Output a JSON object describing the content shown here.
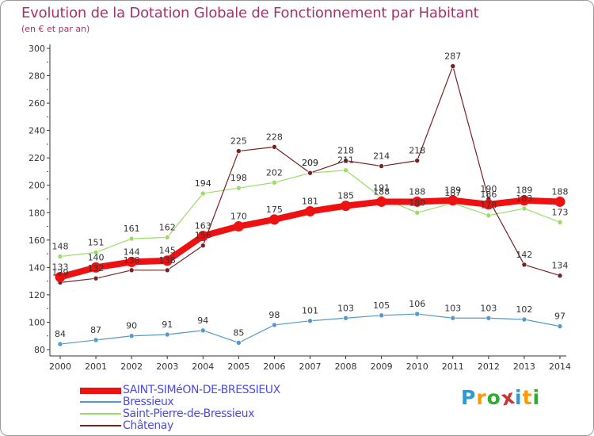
{
  "title": "Evolution de la Dotation Globale de Fonctionnement par Habitant",
  "subtitle": "(en € et par an)",
  "logo": {
    "text": "Proxiti",
    "letters": [
      "P",
      "r",
      "o",
      "x",
      "i",
      "t",
      "i"
    ],
    "colors": [
      "#3399cc",
      "#ff9900",
      "#33aa33",
      "#cc3333",
      "#3399cc",
      "#ff9900",
      "#33aa33"
    ]
  },
  "chart_data": {
    "type": "line",
    "title": "Evolution de la Dotation Globale de Fonctionnement par Habitant",
    "subtitle": "(en € et par an)",
    "xlabel": "",
    "ylabel": "",
    "x": [
      "2000",
      "2001",
      "2002",
      "2003",
      "2004",
      "2005",
      "2006",
      "2007",
      "2008",
      "2009",
      "2010",
      "2011",
      "2012",
      "2013",
      "2014"
    ],
    "ylim": [
      80,
      300
    ],
    "yticks": [
      "80",
      "100",
      "120",
      "140",
      "160",
      "180",
      "200",
      "220",
      "240",
      "260",
      "280",
      "300"
    ],
    "grid": false,
    "legend_position": "bottom-left",
    "series": [
      {
        "name": "SAINT-SIMéON-DE-BRESSIEUX",
        "color": "#ee1111",
        "values": [
          133,
          140,
          144,
          145,
          163,
          170,
          175,
          181,
          185,
          188,
          188,
          189,
          186,
          189,
          188
        ],
        "labels": [
          "133",
          "140",
          "144",
          "145",
          "163",
          "170",
          "175",
          "181",
          "185",
          "188",
          "188",
          "189",
          "186",
          "189",
          "188"
        ]
      },
      {
        "name": "Bressieux",
        "color": "#5599cc",
        "values": [
          84,
          87,
          90,
          91,
          94,
          85,
          98,
          101,
          103,
          105,
          106,
          103,
          103,
          102,
          97
        ],
        "labels": [
          "84",
          "87",
          "90",
          "91",
          "94",
          "85",
          "98",
          "101",
          "103",
          "105",
          "106",
          "103",
          "103",
          "102",
          "97"
        ]
      },
      {
        "name": "Saint-Pierre-de-Bressieux",
        "color": "#99dd66",
        "values": [
          148,
          151,
          161,
          162,
          194,
          198,
          202,
          209,
          211,
          191,
          180,
          187,
          178,
          183,
          173
        ],
        "labels": [
          "148",
          "151",
          "161",
          "162",
          "194",
          "198",
          "202",
          "209",
          "211",
          "191",
          "180",
          "187",
          "178",
          "183",
          "173"
        ]
      },
      {
        "name": "Châtenay",
        "color": "#772222",
        "values": [
          129,
          132,
          138,
          138,
          156,
          225,
          228,
          209,
          218,
          214,
          218,
          287,
          190,
          142,
          134
        ],
        "labels": [
          "129",
          "132",
          "138",
          "138",
          "156",
          "225",
          "228",
          "209",
          "218",
          "214",
          "218",
          "287",
          "190",
          "142",
          "134"
        ]
      }
    ]
  }
}
